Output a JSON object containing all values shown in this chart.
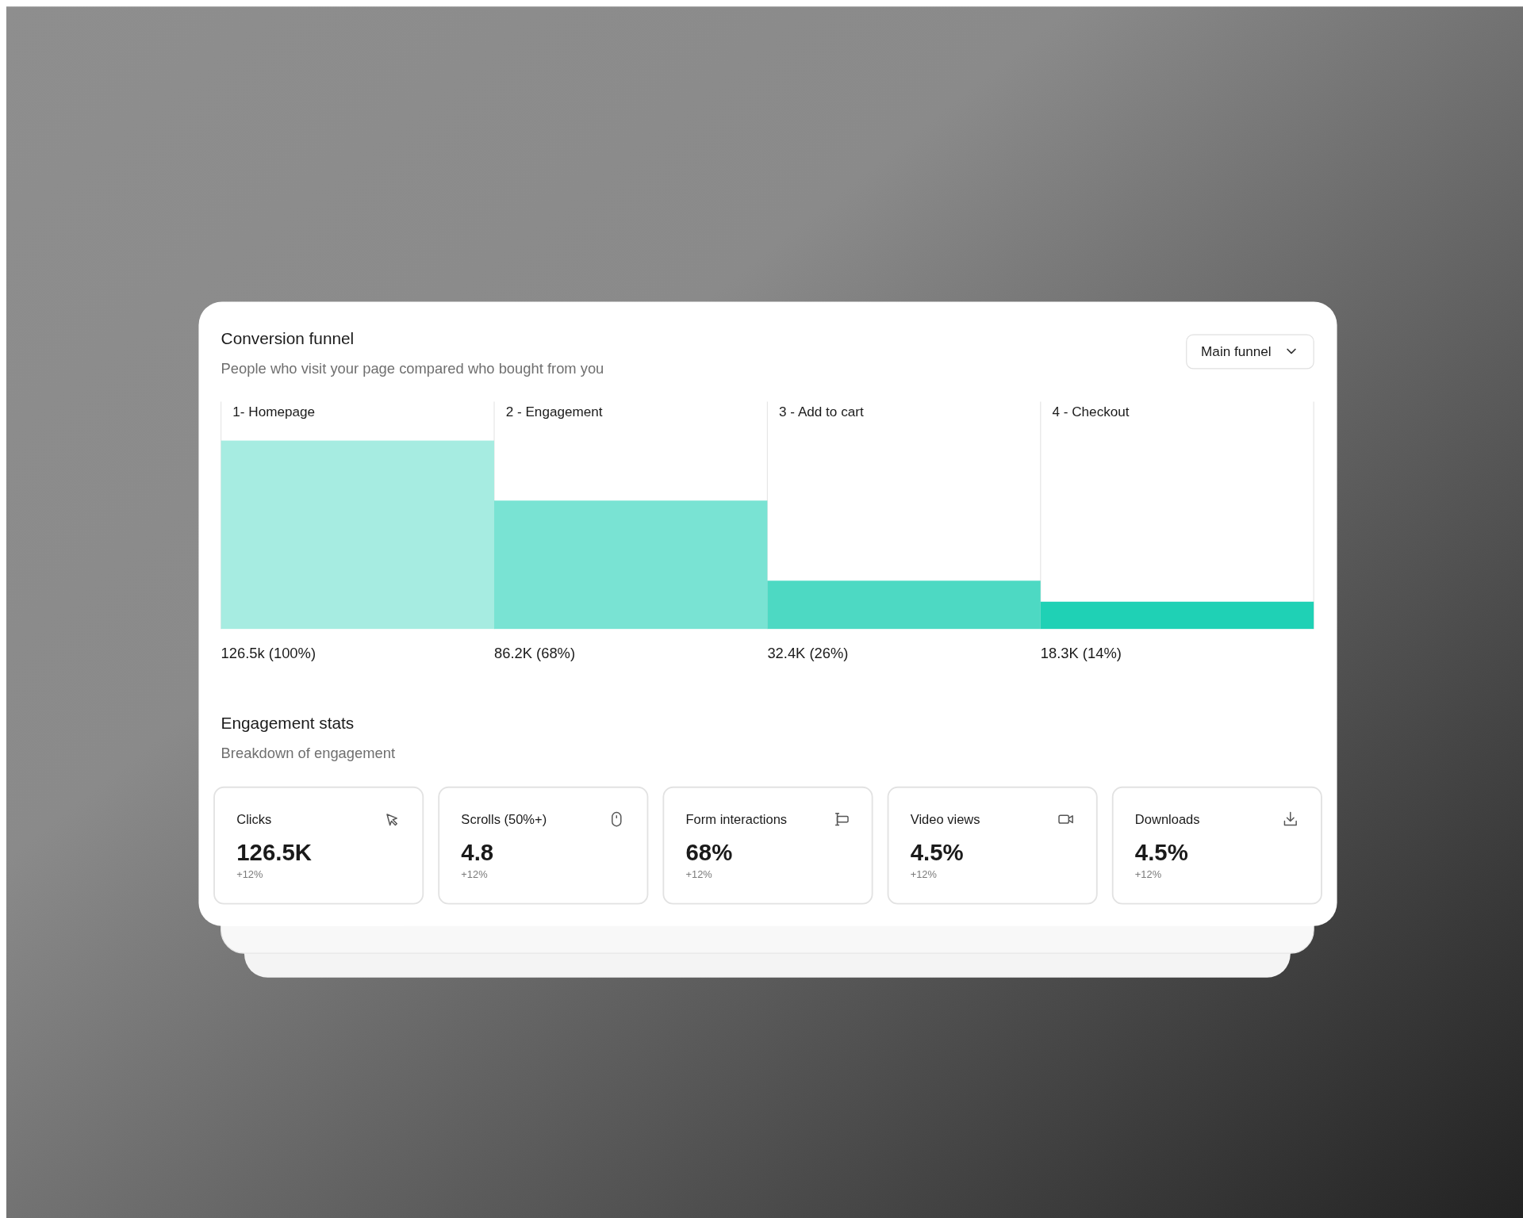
{
  "chart_data": [
    {
      "type": "bar",
      "title": "Conversion funnel",
      "subtitle": "People who visit your page compared who bought from you",
      "annotations": [
        "Main funnel"
      ],
      "categories": [
        "1- Homepage",
        "2 - Engagement",
        "3 - Add to cart",
        "4 - Checkout"
      ],
      "values": [
        126500,
        86200,
        32400,
        18300
      ],
      "colors": [
        "#a6ece1",
        "#79e3d3",
        "#4dd9c3",
        "#1fd1b5"
      ],
      "value_labels": [
        "126.5k (100%)",
        "86.2K (68%)",
        "32.4K (26%)",
        "18.3K (14%)"
      ]
    },
    {
      "type": "other",
      "title": "Engagement stats",
      "subtitle": "Breakdown of engagement",
      "annotations": [
        "Clicks",
        "126.5K",
        "+12%",
        "Scrolls (50%+)",
        "4.8",
        "+12%",
        "Form interactions",
        "68%",
        "+12%",
        "Video views",
        "4.5%",
        "+12%",
        "Downloads",
        "4.5%",
        "+12%"
      ]
    }
  ]
}
